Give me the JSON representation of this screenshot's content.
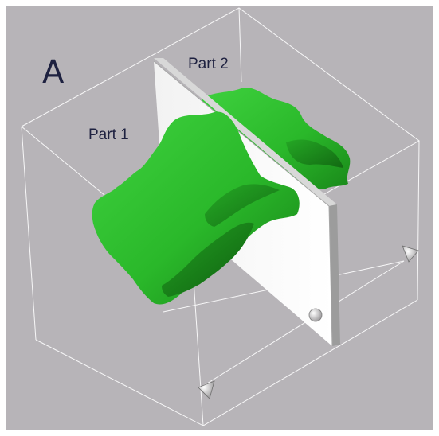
{
  "figure": {
    "panel_label": "A",
    "part_labels": [
      "Part 1",
      "Part 2"
    ]
  },
  "colors": {
    "background": "#b7b4b8",
    "surface": "#2fc42f",
    "surface_dark": "#1c8a1c",
    "plane": "#ffffff",
    "box_edges": "#ffffff",
    "text": "#1e2140"
  },
  "icons": [
    "cone-marker-icon",
    "cone-marker-icon",
    "sphere-marker-icon"
  ]
}
